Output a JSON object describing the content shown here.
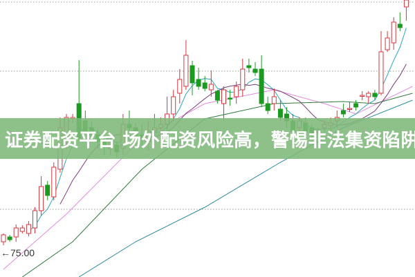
{
  "banner": {
    "text": "证券配资平台 场外配资风险高，警惕非法集资陷阱！"
  },
  "chart_data": {
    "type": "candlestick",
    "price_marker": "←75.00",
    "ylim": [
      71.6,
      111.7
    ],
    "grid": "dotted-horizontal",
    "colors": {
      "up": "#d8343c",
      "down": "#1b9a20",
      "ma_fast": "#2aa6b8",
      "ma_mid": "#7a3a7a",
      "ma_pink": "#e48ae0",
      "ma_green": "#2f7a3a",
      "ma_teal": "#2a8a9a"
    },
    "gridlines": [
      111.4,
      101.4,
      81.4
    ],
    "candles": [
      [
        76.7,
        77.7,
        77.9,
        76.2
      ],
      [
        77.4,
        77.0,
        77.7,
        76.7
      ],
      [
        77.4,
        78.7,
        79.2,
        76.7
      ],
      [
        78.2,
        78.7,
        79.1,
        77.9
      ],
      [
        77.9,
        79.2,
        79.7,
        77.5
      ],
      [
        78.7,
        81.2,
        81.7,
        77.9
      ],
      [
        81.2,
        84.7,
        86.2,
        80.5
      ],
      [
        84.9,
        83.4,
        85.5,
        82.7
      ],
      [
        83.2,
        87.5,
        88.2,
        82.7
      ],
      [
        87.2,
        93.2,
        94.7,
        86.7
      ],
      [
        91.2,
        94.7,
        95.2,
        90.2
      ],
      [
        94.7,
        94.7,
        95.2,
        93.9
      ],
      [
        96.7,
        91.7,
        103.0,
        91.2
      ],
      [
        94.2,
        92.7,
        95.7,
        92.2
      ],
      [
        93.2,
        92.2,
        94.2,
        91.7
      ],
      [
        92.2,
        91.2,
        92.9,
        90.2
      ],
      [
        91.2,
        90.7,
        92.2,
        89.2
      ],
      [
        90.2,
        91.2,
        91.7,
        89.2
      ],
      [
        90.7,
        89.7,
        91.2,
        88.9
      ],
      [
        90.2,
        93.7,
        95.2,
        89.2
      ],
      [
        93.7,
        93.2,
        95.7,
        91.7
      ],
      [
        93.2,
        91.7,
        93.9,
        90.9
      ],
      [
        92.2,
        91.7,
        93.7,
        90.2
      ],
      [
        91.2,
        92.7,
        94.2,
        89.9
      ],
      [
        92.7,
        93.2,
        95.2,
        91.7
      ],
      [
        93.2,
        93.7,
        94.7,
        92.2
      ],
      [
        93.7,
        95.2,
        97.7,
        92.7
      ],
      [
        95.2,
        97.7,
        98.7,
        94.2
      ],
      [
        98.2,
        100.2,
        101.7,
        96.7
      ],
      [
        99.2,
        103.7,
        105.9,
        98.7
      ],
      [
        102.2,
        99.7,
        102.9,
        97.9
      ],
      [
        100.2,
        99.2,
        101.9,
        98.7
      ],
      [
        99.7,
        98.9,
        100.7,
        98.5
      ],
      [
        98.7,
        99.5,
        101.5,
        97.7
      ],
      [
        98.5,
        97.2,
        98.7,
        96.7
      ],
      [
        96.7,
        98.7,
        99.2,
        94.2
      ],
      [
        97.5,
        97.4,
        98.7,
        96.4
      ],
      [
        97.7,
        99.2,
        99.9,
        96.7
      ],
      [
        98.7,
        101.7,
        103.2,
        97.7
      ],
      [
        102.2,
        101.9,
        103.2,
        101.2
      ],
      [
        101.7,
        101.2,
        102.7,
        100.7
      ],
      [
        101.7,
        96.7,
        103.7,
        96.2
      ],
      [
        96.7,
        95.7,
        97.7,
        95.2
      ],
      [
        96.7,
        97.7,
        98.9,
        95.7
      ],
      [
        95.9,
        94.7,
        97.2,
        94.2
      ],
      [
        95.2,
        94.2,
        96.2,
        93.2
      ],
      [
        94.2,
        92.7,
        95.2,
        92.2
      ],
      [
        93.2,
        94.2,
        94.7,
        92.2
      ],
      [
        93.9,
        92.7,
        94.7,
        92.2
      ],
      [
        93.2,
        92.2,
        93.7,
        91.7
      ],
      [
        92.7,
        92.7,
        93.2,
        92.2
      ],
      [
        93.2,
        93.7,
        94.2,
        92.7
      ],
      [
        93.5,
        93.9,
        94.7,
        92.7
      ],
      [
        94.2,
        94.7,
        95.7,
        93.2
      ],
      [
        95.7,
        95.2,
        96.7,
        94.7
      ],
      [
        96.0,
        96.0,
        96.9,
        95.5
      ],
      [
        96.7,
        96.2,
        97.2,
        95.7
      ],
      [
        97.9,
        97.9,
        98.5,
        97.2
      ],
      [
        97.7,
        98.2,
        98.5,
        96.7
      ],
      [
        98.2,
        97.7,
        98.7,
        97.2
      ],
      [
        98.2,
        104.2,
        107.2,
        97.9
      ],
      [
        104.5,
        106.2,
        107.2,
        104.2
      ],
      [
        105.5,
        108.5,
        109.2,
        104.5
      ],
      [
        108.2,
        107.7,
        109.9,
        107.2
      ],
      [
        110.7,
        111.7,
        111.7,
        108.7
      ]
    ],
    "candle_fields": [
      "open",
      "close",
      "high",
      "low"
    ],
    "moving_averages_computed": [
      5,
      10
    ],
    "moving_average_lines": [
      {
        "color_key": "ma_pink",
        "points": [
          [
            1,
            72.7
          ],
          [
            11,
            80.7
          ],
          [
            23,
            91.7
          ],
          [
            33,
            96.7
          ],
          [
            44,
            98.7
          ],
          [
            52,
            96.7
          ],
          [
            57,
            95.2
          ],
          [
            66,
            99.2
          ]
        ]
      },
      {
        "color_key": "ma_green",
        "points": [
          [
            4,
            71.6
          ],
          [
            12,
            76.7
          ],
          [
            23,
            87.2
          ],
          [
            33,
            94.5
          ],
          [
            44,
            96.7
          ],
          [
            55,
            97.0
          ],
          [
            60,
            96.7
          ],
          [
            66,
            98.2
          ]
        ]
      },
      {
        "color_key": "ma_teal",
        "points": [
          [
            13,
            71.6
          ],
          [
            22,
            76.7
          ],
          [
            33,
            81.7
          ],
          [
            45,
            88.2
          ],
          [
            55,
            93.2
          ],
          [
            66,
            97.2
          ]
        ]
      }
    ]
  }
}
